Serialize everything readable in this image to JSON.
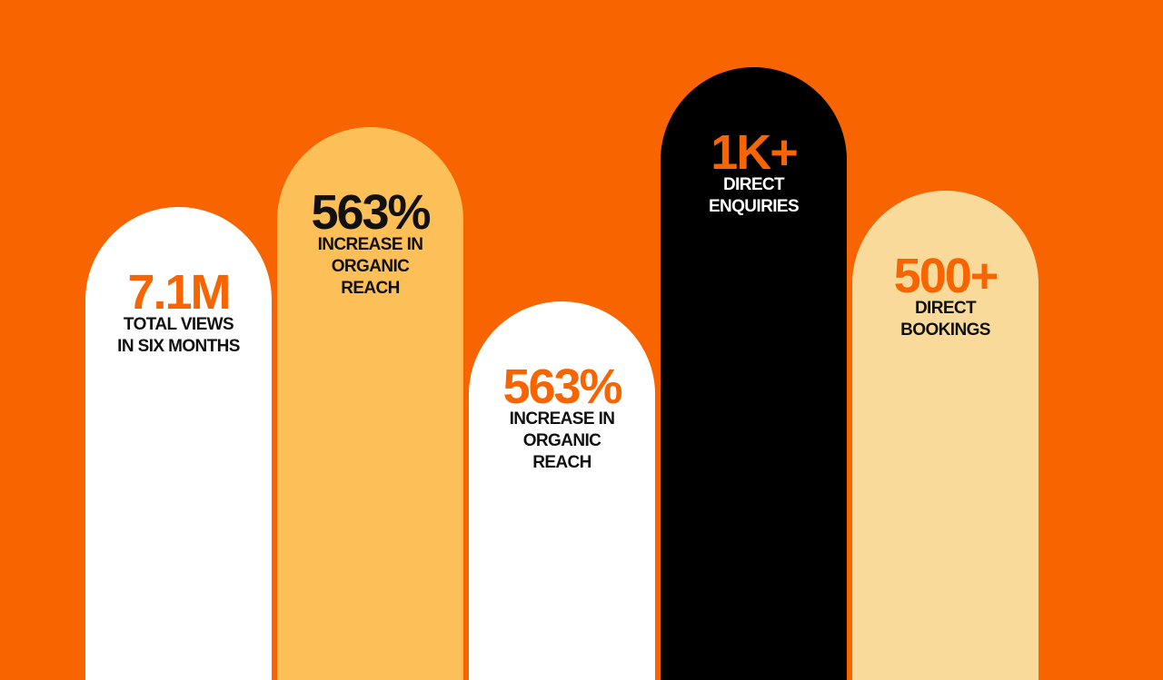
{
  "stats": [
    {
      "value": "7.1M",
      "label": [
        "TOTAL VIEWS",
        "IN SIX MONTHS"
      ],
      "color": "#ffffff",
      "value_color": "#f76400",
      "label_color": "#111111"
    },
    {
      "value": "563%",
      "label": [
        "INCREASE IN",
        "ORGANIC",
        "REACH"
      ],
      "color": "#fdbf57",
      "value_color": "#111111",
      "label_color": "#111111"
    },
    {
      "value": "563%",
      "label": [
        "INCREASE IN",
        "ORGANIC",
        "REACH"
      ],
      "color": "#ffffff",
      "value_color": "#f76400",
      "label_color": "#111111"
    },
    {
      "value": "1K+",
      "label": [
        "DIRECT",
        "ENQUIRIES"
      ],
      "color": "#000000",
      "value_color": "#f76400",
      "label_color": "#ffffff"
    },
    {
      "value": "500+",
      "label": [
        "DIRECT",
        "BOOKINGS"
      ],
      "color": "#f9da9a",
      "value_color": "#f76400",
      "label_color": "#111111"
    }
  ]
}
